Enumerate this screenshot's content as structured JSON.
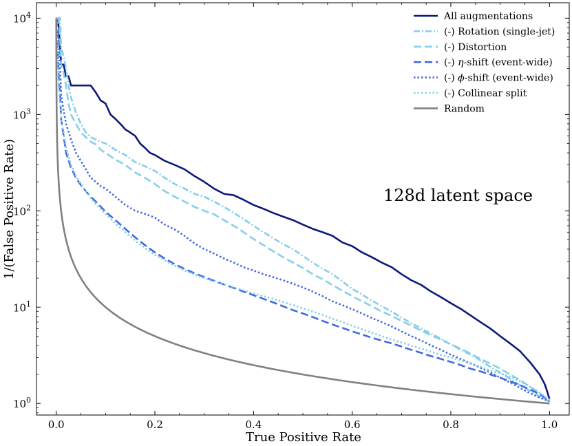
{
  "chart_data": {
    "type": "line",
    "title": "",
    "xlabel": "True Positive Rate",
    "ylabel": "1/(False Positive Rate)",
    "xlim": [
      -0.04,
      1.04
    ],
    "ylim_log10": [
      -0.12,
      4.16
    ],
    "y_scale": "log",
    "x_ticks": [
      0.0,
      0.2,
      0.4,
      0.6,
      0.8,
      1.0
    ],
    "x_tick_labels": [
      "0.0",
      "0.2",
      "0.4",
      "0.6",
      "0.8",
      "1.0"
    ],
    "y_ticks": [
      1,
      10,
      100,
      1000,
      10000
    ],
    "y_tick_labels": [
      {
        "base": "10",
        "exp": "0"
      },
      {
        "base": "10",
        "exp": "1"
      },
      {
        "base": "10",
        "exp": "2"
      },
      {
        "base": "10",
        "exp": "3"
      },
      {
        "base": "10",
        "exp": "4"
      }
    ],
    "grid": false,
    "legend_position": "top-right",
    "annotation": "128d latent space",
    "series": [
      {
        "name": "All augmentations",
        "legend_parts": [
          {
            "t": "All augmentations"
          }
        ],
        "color": "#0b1a7a",
        "dash": "solid",
        "width": 2.6,
        "x": [
          0.001,
          0.003,
          0.005,
          0.008,
          0.01,
          0.015,
          0.02,
          0.025,
          0.03,
          0.035,
          0.05,
          0.06,
          0.07,
          0.08,
          0.09,
          0.1,
          0.11,
          0.12,
          0.13,
          0.14,
          0.15,
          0.16,
          0.17,
          0.18,
          0.19,
          0.2,
          0.22,
          0.24,
          0.26,
          0.28,
          0.3,
          0.32,
          0.34,
          0.36,
          0.38,
          0.4,
          0.42,
          0.44,
          0.46,
          0.48,
          0.5,
          0.52,
          0.54,
          0.56,
          0.58,
          0.6,
          0.62,
          0.64,
          0.66,
          0.68,
          0.7,
          0.72,
          0.74,
          0.76,
          0.78,
          0.8,
          0.82,
          0.84,
          0.86,
          0.88,
          0.9,
          0.92,
          0.94,
          0.96,
          0.98,
          0.99,
          0.995,
          1.0
        ],
        "y": [
          10000,
          10000,
          8000,
          5000,
          3300,
          3300,
          2500,
          2500,
          2000,
          2000,
          2000,
          2000,
          2000,
          1700,
          1400,
          1300,
          1000,
          900,
          800,
          700,
          650,
          600,
          500,
          450,
          400,
          380,
          330,
          300,
          270,
          230,
          200,
          170,
          150,
          145,
          130,
          115,
          105,
          95,
          87,
          80,
          72,
          65,
          60,
          55,
          47,
          43,
          37,
          33,
          29,
          26,
          22,
          19,
          17,
          14.5,
          12.7,
          11,
          9.6,
          8.2,
          7,
          6,
          5,
          4.2,
          3.5,
          2.7,
          2,
          1.6,
          1.35,
          1.1
        ]
      },
      {
        "name": "(-) Rotation (single-jet)",
        "legend_parts": [
          {
            "t": "(-) Rotation (single-jet)"
          }
        ],
        "color": "#87ceeb",
        "dash": "9,3,2,3",
        "width": 2.6,
        "x": [
          0.001,
          0.005,
          0.008,
          0.01,
          0.015,
          0.02,
          0.025,
          0.03,
          0.04,
          0.05,
          0.06,
          0.07,
          0.08,
          0.09,
          0.1,
          0.12,
          0.14,
          0.16,
          0.18,
          0.2,
          0.22,
          0.24,
          0.26,
          0.28,
          0.3,
          0.32,
          0.34,
          0.36,
          0.38,
          0.4,
          0.42,
          0.44,
          0.46,
          0.48,
          0.5,
          0.52,
          0.54,
          0.56,
          0.58,
          0.6,
          0.62,
          0.64,
          0.66,
          0.68,
          0.7,
          0.72,
          0.74,
          0.76,
          0.78,
          0.8,
          0.82,
          0.84,
          0.86,
          0.88,
          0.9,
          0.92,
          0.94,
          0.96,
          0.98,
          0.99,
          1.0
        ],
        "y": [
          10000,
          10000,
          10000,
          5000,
          4000,
          3000,
          2000,
          1500,
          1050,
          800,
          650,
          580,
          550,
          520,
          500,
          430,
          380,
          320,
          290,
          260,
          220,
          190,
          170,
          150,
          140,
          125,
          110,
          95,
          82,
          70,
          60,
          52,
          45,
          40,
          34,
          29,
          25,
          22,
          18.5,
          15.5,
          13.5,
          11.7,
          10.2,
          9,
          7.8,
          6.8,
          6,
          5.3,
          4.7,
          4.1,
          3.6,
          3.2,
          2.8,
          2.4,
          2.1,
          1.8,
          1.55,
          1.35,
          1.18,
          1.1,
          1.05
        ]
      },
      {
        "name": "(-) Distortion",
        "legend_parts": [
          {
            "t": "(-) Distortion"
          }
        ],
        "color": "#87ceeb",
        "dash": "11,5",
        "width": 2.6,
        "x": [
          0.001,
          0.005,
          0.008,
          0.01,
          0.015,
          0.02,
          0.025,
          0.03,
          0.04,
          0.05,
          0.06,
          0.07,
          0.08,
          0.09,
          0.1,
          0.12,
          0.14,
          0.16,
          0.18,
          0.2,
          0.22,
          0.24,
          0.26,
          0.28,
          0.3,
          0.32,
          0.34,
          0.36,
          0.38,
          0.4,
          0.42,
          0.44,
          0.46,
          0.48,
          0.5,
          0.52,
          0.54,
          0.56,
          0.58,
          0.6,
          0.62,
          0.64,
          0.66,
          0.68,
          0.7,
          0.72,
          0.74,
          0.76,
          0.78,
          0.8,
          0.82,
          0.84,
          0.86,
          0.88,
          0.9,
          0.92,
          0.94,
          0.96,
          0.98,
          0.99,
          1.0
        ],
        "y": [
          10000,
          10000,
          6000,
          3300,
          2700,
          2000,
          1300,
          1000,
          800,
          650,
          580,
          520,
          490,
          430,
          400,
          340,
          300,
          250,
          220,
          190,
          160,
          140,
          125,
          110,
          100,
          92,
          80,
          70,
          60,
          51,
          44,
          38,
          33,
          29,
          25.5,
          22,
          19.5,
          17,
          14.8,
          13,
          11.5,
          10.2,
          9,
          8.1,
          7.2,
          6.4,
          5.7,
          5.1,
          4.6,
          4.1,
          3.7,
          3.3,
          2.9,
          2.6,
          2.3,
          2,
          1.75,
          1.5,
          1.28,
          1.15,
          1.05
        ]
      },
      {
        "name": "(-) η-shift (event-wide)",
        "legend_parts": [
          {
            "t": "(-) "
          },
          {
            "t": "η",
            "italic": true
          },
          {
            "t": "-shift (event-wide)"
          }
        ],
        "color": "#4169e1",
        "dash": "11,5",
        "width": 2.6,
        "x": [
          0.001,
          0.003,
          0.005,
          0.008,
          0.01,
          0.015,
          0.02,
          0.03,
          0.04,
          0.05,
          0.06,
          0.07,
          0.08,
          0.1,
          0.12,
          0.14,
          0.16,
          0.18,
          0.2,
          0.22,
          0.24,
          0.26,
          0.28,
          0.3,
          0.32,
          0.34,
          0.36,
          0.38,
          0.4,
          0.42,
          0.44,
          0.46,
          0.48,
          0.5,
          0.52,
          0.54,
          0.56,
          0.58,
          0.6,
          0.62,
          0.64,
          0.66,
          0.68,
          0.7,
          0.72,
          0.74,
          0.76,
          0.78,
          0.8,
          0.82,
          0.84,
          0.86,
          0.88,
          0.9,
          0.92,
          0.94,
          0.96,
          0.98,
          0.99,
          1.0
        ],
        "y": [
          10000,
          5000,
          2500,
          1600,
          900,
          600,
          400,
          280,
          220,
          185,
          160,
          140,
          125,
          98,
          80,
          65,
          53,
          44,
          37,
          32,
          28,
          25,
          22.5,
          20.5,
          18.8,
          17.2,
          15.8,
          14.5,
          13.3,
          12.2,
          11.2,
          10.2,
          9.3,
          8.6,
          7.9,
          7.2,
          6.6,
          6.1,
          5.6,
          5.2,
          4.8,
          4.5,
          4.2,
          3.9,
          3.6,
          3.35,
          3.1,
          2.9,
          2.7,
          2.5,
          2.3,
          2.15,
          2,
          1.85,
          1.7,
          1.55,
          1.4,
          1.25,
          1.15,
          1.05
        ]
      },
      {
        "name": "(-) φ-shift (event-wide)",
        "legend_parts": [
          {
            "t": "(-) "
          },
          {
            "t": "ϕ",
            "italic": true
          },
          {
            "t": "-shift (event-wide)"
          }
        ],
        "color": "#4169e1",
        "dash": "2.5,3",
        "width": 2.6,
        "x": [
          0.001,
          0.003,
          0.005,
          0.008,
          0.01,
          0.015,
          0.02,
          0.03,
          0.04,
          0.05,
          0.06,
          0.07,
          0.08,
          0.09,
          0.1,
          0.12,
          0.14,
          0.16,
          0.18,
          0.2,
          0.22,
          0.24,
          0.26,
          0.28,
          0.3,
          0.32,
          0.34,
          0.36,
          0.38,
          0.4,
          0.42,
          0.44,
          0.46,
          0.48,
          0.5,
          0.52,
          0.54,
          0.56,
          0.58,
          0.6,
          0.62,
          0.64,
          0.66,
          0.68,
          0.7,
          0.72,
          0.74,
          0.76,
          0.78,
          0.8,
          0.82,
          0.84,
          0.86,
          0.88,
          0.9,
          0.92,
          0.94,
          0.96,
          0.98,
          0.99,
          1.0
        ],
        "y": [
          10000,
          7000,
          5000,
          3000,
          1600,
          1100,
          800,
          550,
          400,
          330,
          270,
          220,
          200,
          180,
          170,
          140,
          115,
          100,
          93,
          85,
          72,
          64,
          55,
          46,
          40,
          36,
          32,
          29,
          26,
          24,
          22,
          20.5,
          19,
          17.5,
          16,
          14.5,
          13,
          11.5,
          10.5,
          9.5,
          8.6,
          7.7,
          7,
          6.3,
          5.6,
          5,
          4.5,
          4,
          3.6,
          3.2,
          2.9,
          2.6,
          2.35,
          2.1,
          1.85,
          1.65,
          1.45,
          1.28,
          1.15,
          1.1,
          1.05
        ]
      },
      {
        "name": "(-) Collinear split",
        "legend_parts": [
          {
            "t": "(-) Collinear split"
          }
        ],
        "color": "#87ceeb",
        "dash": "2.5,3",
        "width": 2.6,
        "x": [
          0.001,
          0.003,
          0.005,
          0.008,
          0.01,
          0.015,
          0.02,
          0.03,
          0.04,
          0.05,
          0.06,
          0.07,
          0.08,
          0.1,
          0.12,
          0.14,
          0.16,
          0.18,
          0.2,
          0.22,
          0.24,
          0.26,
          0.28,
          0.3,
          0.32,
          0.34,
          0.36,
          0.38,
          0.4,
          0.42,
          0.44,
          0.46,
          0.48,
          0.5,
          0.52,
          0.54,
          0.56,
          0.58,
          0.6,
          0.62,
          0.64,
          0.66,
          0.68,
          0.7,
          0.72,
          0.74,
          0.76,
          0.78,
          0.8,
          0.82,
          0.84,
          0.86,
          0.88,
          0.9,
          0.92,
          0.94,
          0.96,
          0.98,
          0.99,
          1.0
        ],
        "y": [
          10000,
          4000,
          2000,
          1300,
          900,
          650,
          450,
          300,
          230,
          190,
          160,
          135,
          118,
          93,
          74,
          60,
          49,
          41,
          35,
          30.5,
          27,
          24,
          21.8,
          20,
          18.5,
          17.2,
          16,
          14.9,
          13.9,
          13,
          12.2,
          11.3,
          10.5,
          9.7,
          9,
          8.3,
          7.6,
          7,
          6.4,
          5.9,
          5.4,
          5,
          4.6,
          4.3,
          4,
          3.7,
          3.45,
          3.2,
          3,
          2.8,
          2.6,
          2.4,
          2.2,
          2.05,
          1.9,
          1.7,
          1.5,
          1.3,
          1.18,
          1.1
        ]
      },
      {
        "name": "Random",
        "legend_parts": [
          {
            "t": "Random"
          }
        ],
        "color": "#808080",
        "dash": "solid",
        "width": 2.6,
        "random": true
      }
    ]
  }
}
